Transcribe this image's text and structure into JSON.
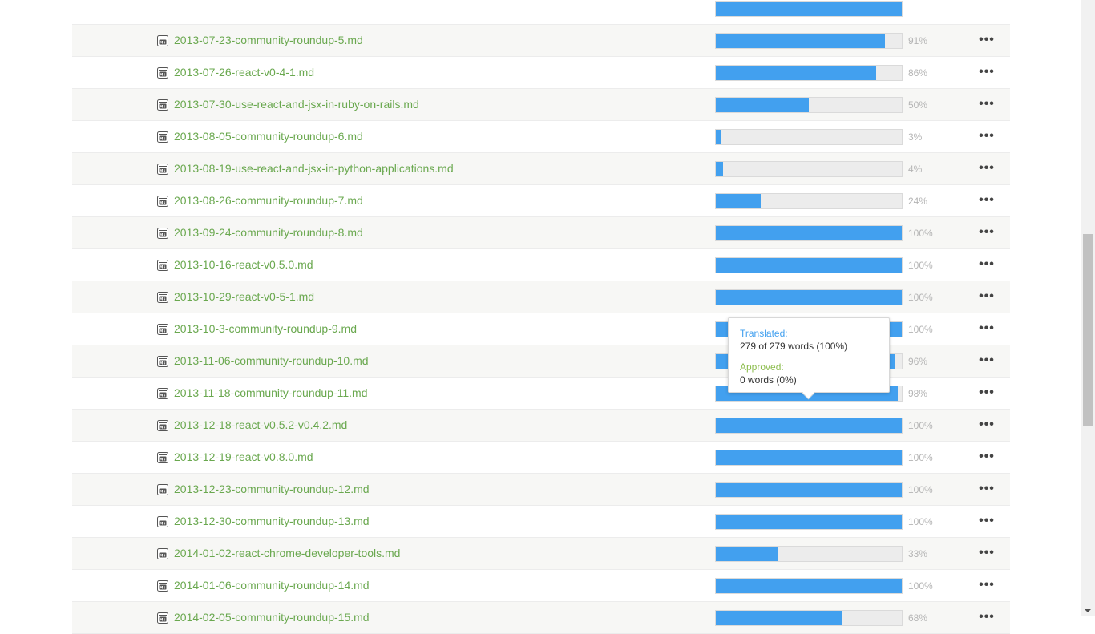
{
  "files": [
    {
      "name": "",
      "percent": 100,
      "percent_label": ""
    },
    {
      "name": "2013-07-23-community-roundup-5.md",
      "percent": 91,
      "percent_label": "91%"
    },
    {
      "name": "2013-07-26-react-v0-4-1.md",
      "percent": 86,
      "percent_label": "86%"
    },
    {
      "name": "2013-07-30-use-react-and-jsx-in-ruby-on-rails.md",
      "percent": 50,
      "percent_label": "50%"
    },
    {
      "name": "2013-08-05-community-roundup-6.md",
      "percent": 3,
      "percent_label": "3%"
    },
    {
      "name": "2013-08-19-use-react-and-jsx-in-python-applications.md",
      "percent": 4,
      "percent_label": "4%"
    },
    {
      "name": "2013-08-26-community-roundup-7.md",
      "percent": 24,
      "percent_label": "24%"
    },
    {
      "name": "2013-09-24-community-roundup-8.md",
      "percent": 100,
      "percent_label": "100%"
    },
    {
      "name": "2013-10-16-react-v0.5.0.md",
      "percent": 100,
      "percent_label": "100%"
    },
    {
      "name": "2013-10-29-react-v0-5-1.md",
      "percent": 100,
      "percent_label": "100%"
    },
    {
      "name": "2013-10-3-community-roundup-9.md",
      "percent": 100,
      "percent_label": "100%"
    },
    {
      "name": "2013-11-06-community-roundup-10.md",
      "percent": 96,
      "percent_label": "96%"
    },
    {
      "name": "2013-11-18-community-roundup-11.md",
      "percent": 98,
      "percent_label": "98%"
    },
    {
      "name": "2013-12-18-react-v0.5.2-v0.4.2.md",
      "percent": 100,
      "percent_label": "100%"
    },
    {
      "name": "2013-12-19-react-v0.8.0.md",
      "percent": 100,
      "percent_label": "100%"
    },
    {
      "name": "2013-12-23-community-roundup-12.md",
      "percent": 100,
      "percent_label": "100%"
    },
    {
      "name": "2013-12-30-community-roundup-13.md",
      "percent": 100,
      "percent_label": "100%"
    },
    {
      "name": "2014-01-02-react-chrome-developer-tools.md",
      "percent": 33,
      "percent_label": "33%"
    },
    {
      "name": "2014-01-06-community-roundup-14.md",
      "percent": 100,
      "percent_label": "100%"
    },
    {
      "name": "2014-02-05-community-roundup-15.md",
      "percent": 68,
      "percent_label": "68%"
    }
  ],
  "more_label": "•••",
  "file_icon": "markdown-file-icon",
  "tooltip": {
    "translated_label": "Translated:",
    "translated_value": "279 of 279 words (100%)",
    "approved_label": "Approved:",
    "approved_value": "0 words (0%)"
  },
  "colors": {
    "link": "#6aa84f",
    "progress": "#42a0ef",
    "approved": "#8dbd4e"
  }
}
